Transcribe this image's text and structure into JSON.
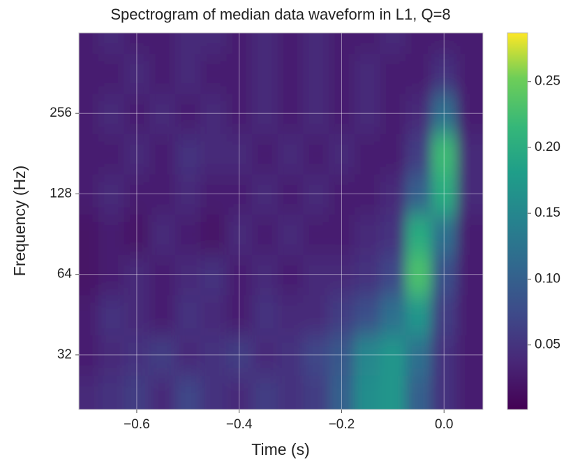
{
  "chart_data": {
    "type": "heatmap",
    "title": "Spectrogram of median data waveform in L1, Q=8",
    "x_label": "Time (s)",
    "y_label": "Frequency (Hz)",
    "yscale": "log",
    "grid": true,
    "colormap": "viridis",
    "xlim": [
      -0.713,
      0.076
    ],
    "ylim": [
      20,
      512
    ],
    "xticks": [
      {
        "value": -0.6,
        "label": "−0.6"
      },
      {
        "value": -0.4,
        "label": "−0.4"
      },
      {
        "value": -0.2,
        "label": "−0.2"
      },
      {
        "value": 0,
        "label": "0.0"
      }
    ],
    "yticks": [
      32,
      64,
      128,
      256
    ],
    "colorbar_lim": [
      0.001,
      0.287
    ],
    "colorbar_ticks": [
      0.05,
      {
        "value": 0.1,
        "label": "0.10"
      },
      0.15,
      {
        "value": 0.2,
        "label": "0.20"
      },
      0.25
    ],
    "x": [
      -0.7,
      -0.65,
      -0.6,
      -0.55,
      -0.5,
      -0.45,
      -0.4,
      -0.35,
      -0.3,
      -0.25,
      -0.2,
      -0.15,
      -0.1,
      -0.05,
      0.0,
      0.05
    ],
    "y": [
      22.6,
      32,
      45.3,
      64,
      90.5,
      128,
      181,
      256,
      362,
      512
    ],
    "z": [
      [
        0.04,
        0.05,
        0.06,
        0.04,
        0.07,
        0.05,
        0.04,
        0.06,
        0.05,
        0.06,
        0.1,
        0.16,
        0.17,
        0.1,
        0.05,
        0.03
      ],
      [
        0.03,
        0.04,
        0.05,
        0.06,
        0.04,
        0.05,
        0.06,
        0.04,
        0.05,
        0.07,
        0.09,
        0.15,
        0.17,
        0.12,
        0.05,
        0.03
      ],
      [
        0.03,
        0.05,
        0.04,
        0.03,
        0.05,
        0.04,
        0.03,
        0.05,
        0.04,
        0.04,
        0.06,
        0.08,
        0.12,
        0.17,
        0.06,
        0.03
      ],
      [
        0.02,
        0.03,
        0.04,
        0.03,
        0.04,
        0.05,
        0.03,
        0.04,
        0.03,
        0.04,
        0.04,
        0.05,
        0.07,
        0.23,
        0.08,
        0.03
      ],
      [
        0.02,
        0.03,
        0.02,
        0.04,
        0.03,
        0.02,
        0.04,
        0.03,
        0.04,
        0.03,
        0.03,
        0.04,
        0.05,
        0.2,
        0.12,
        0.03
      ],
      [
        0.03,
        0.04,
        0.03,
        0.03,
        0.04,
        0.03,
        0.03,
        0.04,
        0.03,
        0.04,
        0.03,
        0.03,
        0.04,
        0.1,
        0.2,
        0.04
      ],
      [
        0.03,
        0.03,
        0.04,
        0.03,
        0.05,
        0.04,
        0.04,
        0.03,
        0.04,
        0.03,
        0.04,
        0.03,
        0.03,
        0.06,
        0.22,
        0.04
      ],
      [
        0.03,
        0.04,
        0.03,
        0.04,
        0.03,
        0.04,
        0.03,
        0.04,
        0.03,
        0.04,
        0.03,
        0.04,
        0.03,
        0.04,
        0.12,
        0.03
      ],
      [
        0.03,
        0.03,
        0.04,
        0.03,
        0.04,
        0.03,
        0.03,
        0.04,
        0.03,
        0.04,
        0.03,
        0.04,
        0.03,
        0.03,
        0.05,
        0.03
      ],
      [
        0.03,
        0.04,
        0.03,
        0.03,
        0.04,
        0.04,
        0.03,
        0.04,
        0.03,
        0.04,
        0.03,
        0.03,
        0.04,
        0.03,
        0.03,
        0.03
      ]
    ]
  }
}
